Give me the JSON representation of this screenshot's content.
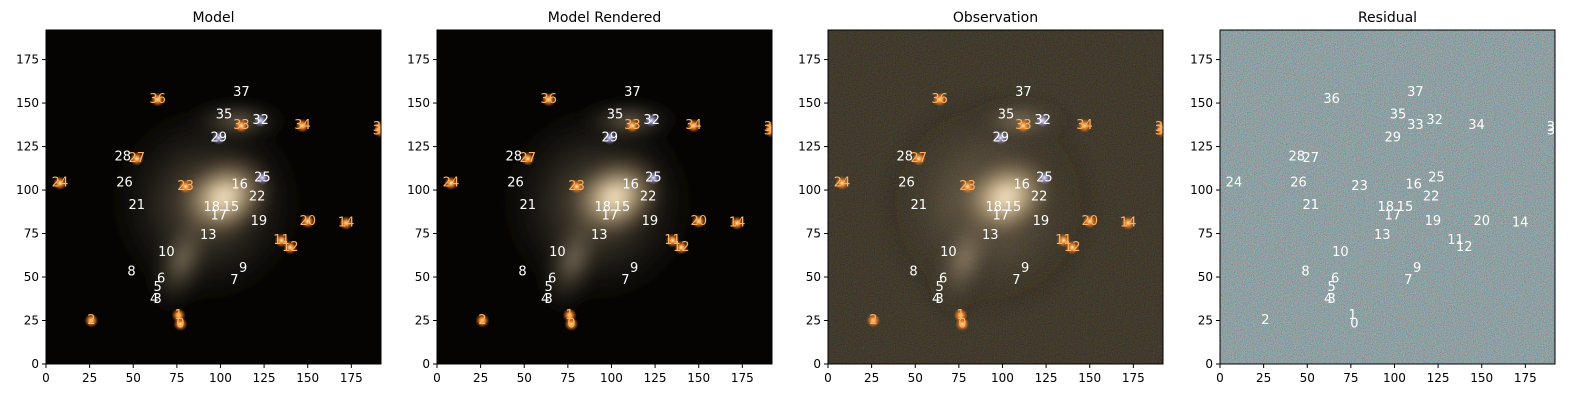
{
  "chart_data": {
    "type": "multi-panel image with source labels",
    "panels": [
      {
        "title": "Model",
        "style": "model"
      },
      {
        "title": "Model Rendered",
        "style": "rendered"
      },
      {
        "title": "Observation",
        "style": "observation"
      },
      {
        "title": "Residual",
        "style": "residual"
      }
    ],
    "xlim": [
      0,
      192
    ],
    "ylim": [
      0,
      192
    ],
    "xticks": [
      0,
      25,
      50,
      75,
      100,
      125,
      150,
      175
    ],
    "yticks": [
      0,
      25,
      50,
      75,
      100,
      125,
      150,
      175
    ],
    "sources": [
      {
        "id": "0",
        "x": 77,
        "y": 23
      },
      {
        "id": "1",
        "x": 76,
        "y": 28
      },
      {
        "id": "2",
        "x": 26,
        "y": 25
      },
      {
        "id": "3",
        "x": 64,
        "y": 37
      },
      {
        "id": "4",
        "x": 62,
        "y": 37
      },
      {
        "id": "5",
        "x": 64,
        "y": 44
      },
      {
        "id": "6",
        "x": 66,
        "y": 49
      },
      {
        "id": "7",
        "x": 108,
        "y": 48
      },
      {
        "id": "8",
        "x": 49,
        "y": 53
      },
      {
        "id": "9",
        "x": 113,
        "y": 55
      },
      {
        "id": "10",
        "x": 69,
        "y": 64
      },
      {
        "id": "11",
        "x": 135,
        "y": 71
      },
      {
        "id": "12",
        "x": 140,
        "y": 67
      },
      {
        "id": "13",
        "x": 93,
        "y": 74
      },
      {
        "id": "14",
        "x": 172,
        "y": 81
      },
      {
        "id": "15",
        "x": 106,
        "y": 90
      },
      {
        "id": "16",
        "x": 111,
        "y": 103
      },
      {
        "id": "17",
        "x": 99,
        "y": 85
      },
      {
        "id": "18",
        "x": 95,
        "y": 90
      },
      {
        "id": "19",
        "x": 122,
        "y": 82
      },
      {
        "id": "20",
        "x": 150,
        "y": 82
      },
      {
        "id": "21",
        "x": 52,
        "y": 91
      },
      {
        "id": "22",
        "x": 121,
        "y": 96
      },
      {
        "id": "23",
        "x": 80,
        "y": 102
      },
      {
        "id": "24",
        "x": 8,
        "y": 104
      },
      {
        "id": "25",
        "x": 124,
        "y": 107
      },
      {
        "id": "26",
        "x": 45,
        "y": 104
      },
      {
        "id": "27",
        "x": 52,
        "y": 118
      },
      {
        "id": "28",
        "x": 44,
        "y": 119
      },
      {
        "id": "29",
        "x": 99,
        "y": 130
      },
      {
        "id": "30",
        "x": 192,
        "y": 134
      },
      {
        "id": "31",
        "x": 192,
        "y": 136
      },
      {
        "id": "32",
        "x": 123,
        "y": 140
      },
      {
        "id": "33",
        "x": 112,
        "y": 137
      },
      {
        "id": "34",
        "x": 147,
        "y": 137
      },
      {
        "id": "35",
        "x": 102,
        "y": 143
      },
      {
        "id": "36",
        "x": 64,
        "y": 152
      },
      {
        "id": "37",
        "x": 112,
        "y": 156
      }
    ],
    "colors": {
      "label_light": "#ffffff",
      "label_orange": "#ffb060",
      "background_dark": "#000000"
    }
  }
}
